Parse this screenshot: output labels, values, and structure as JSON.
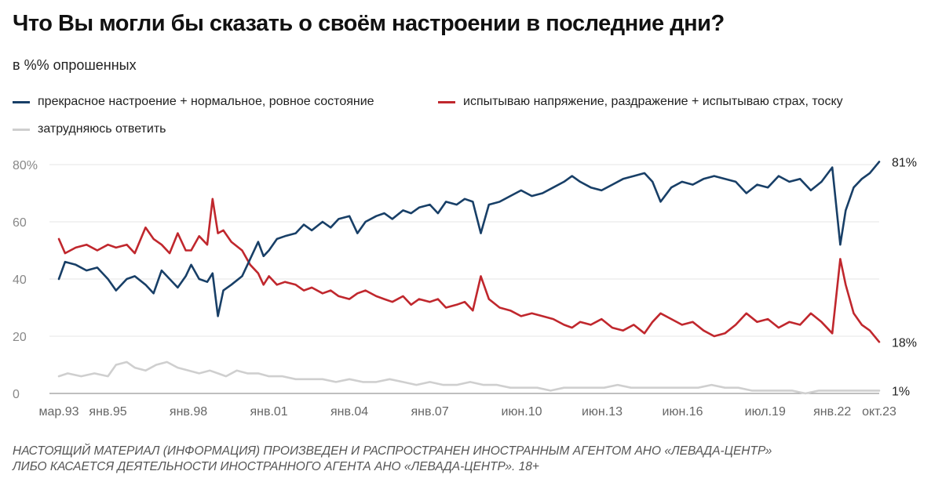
{
  "title": "Что Вы могли бы сказать о своём настроении в последние дни?",
  "subtitle": "в %% опрошенных",
  "footer": {
    "line1": "НАСТОЯЩИЙ МАТЕРИАЛ (ИНФОРМАЦИЯ) ПРОИЗВЕДЕН И РАСПРОСТРАНЕН ИНОСТРАННЫМ АГЕНТОМ АНО «ЛЕВАДА-ЦЕНТР»",
    "line2": "ЛИБО КАСАЕТСЯ ДЕЯТЕЛЬНОСТИ ИНОСТРАННОГО АГЕНТА АНО «ЛЕВАДА-ЦЕНТР». 18+"
  },
  "colors": {
    "positive": "#183f67",
    "negative": "#c0272d",
    "unsure": "#cfcfcf",
    "grid": "#e6e6e6",
    "axis": "#999999"
  },
  "chart_data": {
    "type": "line",
    "xlabel": "",
    "ylabel": "",
    "ylim": [
      0,
      80
    ],
    "y_ticks": [
      "80%",
      "60",
      "40",
      "20",
      "0"
    ],
    "y_tick_values": [
      80,
      60,
      40,
      20,
      0
    ],
    "x_ticks": [
      "мар.93",
      "янв.95",
      "янв.98",
      "янв.01",
      "янв.04",
      "янв.07",
      "июн.10",
      "июн.13",
      "июн.16",
      "июл.19",
      "янв.22",
      "окт.23"
    ],
    "x_tick_years": [
      1993.17,
      1995.0,
      1998.0,
      2001.0,
      2004.0,
      2007.0,
      2010.42,
      2013.42,
      2016.42,
      2019.5,
      2022.0,
      2023.75
    ],
    "grid": true,
    "legend_position": "top",
    "end_labels": [
      "81%",
      "18%",
      "1%"
    ],
    "series": [
      {
        "name": "прекрасное настроение + нормальное, ровное состояние",
        "color": "#183f67",
        "points": [
          [
            1993.17,
            40
          ],
          [
            1993.4,
            46
          ],
          [
            1993.8,
            45
          ],
          [
            1994.2,
            43
          ],
          [
            1994.6,
            44
          ],
          [
            1995.0,
            40
          ],
          [
            1995.3,
            36
          ],
          [
            1995.7,
            40
          ],
          [
            1996.0,
            41
          ],
          [
            1996.4,
            38
          ],
          [
            1996.7,
            35
          ],
          [
            1997.0,
            43
          ],
          [
            1997.3,
            40
          ],
          [
            1997.6,
            37
          ],
          [
            1997.9,
            41
          ],
          [
            1998.1,
            45
          ],
          [
            1998.4,
            40
          ],
          [
            1998.7,
            39
          ],
          [
            1998.9,
            42
          ],
          [
            1999.1,
            27
          ],
          [
            1999.3,
            36
          ],
          [
            1999.6,
            38
          ],
          [
            2000.0,
            41
          ],
          [
            2000.3,
            47
          ],
          [
            2000.6,
            53
          ],
          [
            2000.8,
            48
          ],
          [
            2001.0,
            50
          ],
          [
            2001.3,
            54
          ],
          [
            2001.6,
            55
          ],
          [
            2002.0,
            56
          ],
          [
            2002.3,
            59
          ],
          [
            2002.6,
            57
          ],
          [
            2003.0,
            60
          ],
          [
            2003.3,
            58
          ],
          [
            2003.6,
            61
          ],
          [
            2004.0,
            62
          ],
          [
            2004.3,
            56
          ],
          [
            2004.6,
            60
          ],
          [
            2005.0,
            62
          ],
          [
            2005.3,
            63
          ],
          [
            2005.6,
            61
          ],
          [
            2006.0,
            64
          ],
          [
            2006.3,
            63
          ],
          [
            2006.6,
            65
          ],
          [
            2007.0,
            66
          ],
          [
            2007.3,
            63
          ],
          [
            2007.6,
            67
          ],
          [
            2008.0,
            66
          ],
          [
            2008.3,
            68
          ],
          [
            2008.6,
            67
          ],
          [
            2008.9,
            56
          ],
          [
            2009.2,
            66
          ],
          [
            2009.6,
            67
          ],
          [
            2010.0,
            69
          ],
          [
            2010.4,
            71
          ],
          [
            2010.8,
            69
          ],
          [
            2011.2,
            70
          ],
          [
            2011.6,
            72
          ],
          [
            2012.0,
            74
          ],
          [
            2012.3,
            76
          ],
          [
            2012.6,
            74
          ],
          [
            2013.0,
            72
          ],
          [
            2013.4,
            71
          ],
          [
            2013.8,
            73
          ],
          [
            2014.2,
            75
          ],
          [
            2014.6,
            76
          ],
          [
            2015.0,
            77
          ],
          [
            2015.3,
            74
          ],
          [
            2015.6,
            67
          ],
          [
            2016.0,
            72
          ],
          [
            2016.4,
            74
          ],
          [
            2016.8,
            73
          ],
          [
            2017.2,
            75
          ],
          [
            2017.6,
            76
          ],
          [
            2018.0,
            75
          ],
          [
            2018.4,
            74
          ],
          [
            2018.8,
            70
          ],
          [
            2019.2,
            73
          ],
          [
            2019.6,
            72
          ],
          [
            2020.0,
            76
          ],
          [
            2020.4,
            74
          ],
          [
            2020.8,
            75
          ],
          [
            2021.2,
            71
          ],
          [
            2021.6,
            74
          ],
          [
            2022.0,
            79
          ],
          [
            2022.3,
            52
          ],
          [
            2022.5,
            64
          ],
          [
            2022.8,
            72
          ],
          [
            2023.1,
            75
          ],
          [
            2023.4,
            77
          ],
          [
            2023.75,
            81
          ]
        ]
      },
      {
        "name": "испытываю напряжение, раздражение + испытываю страх, тоску",
        "color": "#c0272d",
        "points": [
          [
            1993.17,
            54
          ],
          [
            1993.4,
            49
          ],
          [
            1993.8,
            51
          ],
          [
            1994.2,
            52
          ],
          [
            1994.6,
            50
          ],
          [
            1995.0,
            52
          ],
          [
            1995.3,
            51
          ],
          [
            1995.7,
            52
          ],
          [
            1996.0,
            49
          ],
          [
            1996.4,
            58
          ],
          [
            1996.7,
            54
          ],
          [
            1997.0,
            52
          ],
          [
            1997.3,
            49
          ],
          [
            1997.6,
            56
          ],
          [
            1997.9,
            50
          ],
          [
            1998.1,
            50
          ],
          [
            1998.4,
            55
          ],
          [
            1998.7,
            52
          ],
          [
            1998.9,
            68
          ],
          [
            1999.1,
            56
          ],
          [
            1999.3,
            57
          ],
          [
            1999.6,
            53
          ],
          [
            2000.0,
            50
          ],
          [
            2000.3,
            45
          ],
          [
            2000.6,
            42
          ],
          [
            2000.8,
            38
          ],
          [
            2001.0,
            41
          ],
          [
            2001.3,
            38
          ],
          [
            2001.6,
            39
          ],
          [
            2002.0,
            38
          ],
          [
            2002.3,
            36
          ],
          [
            2002.6,
            37
          ],
          [
            2003.0,
            35
          ],
          [
            2003.3,
            36
          ],
          [
            2003.6,
            34
          ],
          [
            2004.0,
            33
          ],
          [
            2004.3,
            35
          ],
          [
            2004.6,
            36
          ],
          [
            2005.0,
            34
          ],
          [
            2005.3,
            33
          ],
          [
            2005.6,
            32
          ],
          [
            2006.0,
            34
          ],
          [
            2006.3,
            31
          ],
          [
            2006.6,
            33
          ],
          [
            2007.0,
            32
          ],
          [
            2007.3,
            33
          ],
          [
            2007.6,
            30
          ],
          [
            2008.0,
            31
          ],
          [
            2008.3,
            32
          ],
          [
            2008.6,
            29
          ],
          [
            2008.9,
            41
          ],
          [
            2009.2,
            33
          ],
          [
            2009.6,
            30
          ],
          [
            2010.0,
            29
          ],
          [
            2010.4,
            27
          ],
          [
            2010.8,
            28
          ],
          [
            2011.2,
            27
          ],
          [
            2011.6,
            26
          ],
          [
            2012.0,
            24
          ],
          [
            2012.3,
            23
          ],
          [
            2012.6,
            25
          ],
          [
            2013.0,
            24
          ],
          [
            2013.4,
            26
          ],
          [
            2013.8,
            23
          ],
          [
            2014.2,
            22
          ],
          [
            2014.6,
            24
          ],
          [
            2015.0,
            21
          ],
          [
            2015.3,
            25
          ],
          [
            2015.6,
            28
          ],
          [
            2016.0,
            26
          ],
          [
            2016.4,
            24
          ],
          [
            2016.8,
            25
          ],
          [
            2017.2,
            22
          ],
          [
            2017.6,
            20
          ],
          [
            2018.0,
            21
          ],
          [
            2018.4,
            24
          ],
          [
            2018.8,
            28
          ],
          [
            2019.2,
            25
          ],
          [
            2019.6,
            26
          ],
          [
            2020.0,
            23
          ],
          [
            2020.4,
            25
          ],
          [
            2020.8,
            24
          ],
          [
            2021.2,
            28
          ],
          [
            2021.6,
            25
          ],
          [
            2022.0,
            21
          ],
          [
            2022.3,
            47
          ],
          [
            2022.5,
            38
          ],
          [
            2022.8,
            28
          ],
          [
            2023.1,
            24
          ],
          [
            2023.4,
            22
          ],
          [
            2023.75,
            18
          ]
        ]
      },
      {
        "name": "затрудняюсь ответить",
        "color": "#cfcfcf",
        "points": [
          [
            1993.17,
            6
          ],
          [
            1993.5,
            7
          ],
          [
            1994.0,
            6
          ],
          [
            1994.5,
            7
          ],
          [
            1995.0,
            6
          ],
          [
            1995.3,
            10
          ],
          [
            1995.7,
            11
          ],
          [
            1996.0,
            9
          ],
          [
            1996.4,
            8
          ],
          [
            1996.8,
            10
          ],
          [
            1997.2,
            11
          ],
          [
            1997.6,
            9
          ],
          [
            1998.0,
            8
          ],
          [
            1998.4,
            7
          ],
          [
            1998.8,
            8
          ],
          [
            1999.1,
            7
          ],
          [
            1999.4,
            6
          ],
          [
            1999.8,
            8
          ],
          [
            2000.2,
            7
          ],
          [
            2000.6,
            7
          ],
          [
            2001.0,
            6
          ],
          [
            2001.5,
            6
          ],
          [
            2002.0,
            5
          ],
          [
            2002.5,
            5
          ],
          [
            2003.0,
            5
          ],
          [
            2003.5,
            4
          ],
          [
            2004.0,
            5
          ],
          [
            2004.5,
            4
          ],
          [
            2005.0,
            4
          ],
          [
            2005.5,
            5
          ],
          [
            2006.0,
            4
          ],
          [
            2006.5,
            3
          ],
          [
            2007.0,
            4
          ],
          [
            2007.5,
            3
          ],
          [
            2008.0,
            3
          ],
          [
            2008.5,
            4
          ],
          [
            2009.0,
            3
          ],
          [
            2009.5,
            3
          ],
          [
            2010.0,
            2
          ],
          [
            2010.5,
            2
          ],
          [
            2011.0,
            2
          ],
          [
            2011.5,
            1
          ],
          [
            2012.0,
            2
          ],
          [
            2012.5,
            2
          ],
          [
            2013.0,
            2
          ],
          [
            2013.5,
            2
          ],
          [
            2014.0,
            3
          ],
          [
            2014.5,
            2
          ],
          [
            2015.0,
            2
          ],
          [
            2015.5,
            2
          ],
          [
            2016.0,
            2
          ],
          [
            2016.5,
            2
          ],
          [
            2017.0,
            2
          ],
          [
            2017.5,
            3
          ],
          [
            2018.0,
            2
          ],
          [
            2018.5,
            2
          ],
          [
            2019.0,
            1
          ],
          [
            2019.5,
            1
          ],
          [
            2020.0,
            1
          ],
          [
            2020.5,
            1
          ],
          [
            2021.0,
            0
          ],
          [
            2021.5,
            1
          ],
          [
            2022.0,
            1
          ],
          [
            2022.5,
            1
          ],
          [
            2023.0,
            1
          ],
          [
            2023.75,
            1
          ]
        ]
      }
    ]
  }
}
